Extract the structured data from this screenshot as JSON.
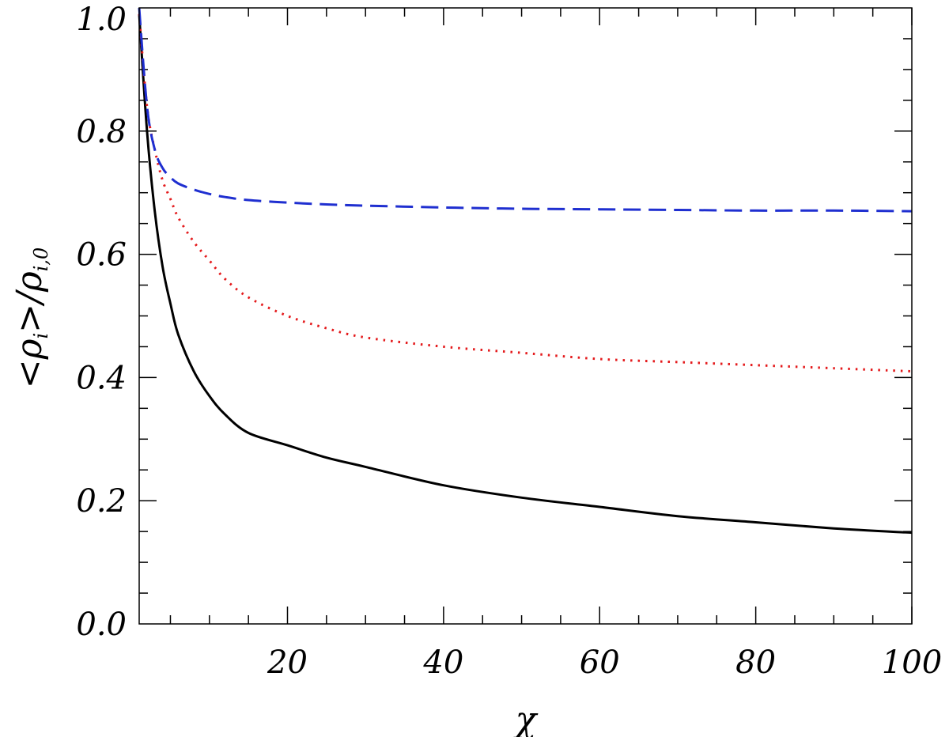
{
  "chart_data": {
    "type": "line",
    "title": "",
    "xlabel": "χ",
    "ylabel": {
      "lt": "<",
      "rho": "ρ",
      "sub_i": "i",
      "gt": ">",
      "slash": "/",
      "rho2": "ρ",
      "sub_i0": "i,0"
    },
    "xlim": [
      1,
      100
    ],
    "ylim": [
      0.0,
      1.0
    ],
    "x_major_ticks": [
      20,
      40,
      60,
      80,
      100
    ],
    "x_tick_labels": [
      "20",
      "40",
      "60",
      "80",
      "100"
    ],
    "x_minor_step": 5,
    "y_major_ticks": [
      0.0,
      0.2,
      0.4,
      0.6,
      0.8,
      1.0
    ],
    "y_tick_labels": [
      "0.0",
      "0.2",
      "0.4",
      "0.6",
      "0.8",
      "1.0"
    ],
    "y_minor_step": 0.05,
    "grid": false,
    "legend": "none",
    "series": [
      {
        "style": "solid",
        "color": "#000000",
        "x": [
          1,
          2,
          3,
          4,
          5,
          6,
          8,
          10,
          12,
          15,
          20,
          25,
          30,
          40,
          50,
          60,
          70,
          80,
          90,
          100
        ],
        "y": [
          0.99,
          0.8,
          0.67,
          0.58,
          0.52,
          0.47,
          0.41,
          0.37,
          0.34,
          0.31,
          0.29,
          0.27,
          0.255,
          0.225,
          0.205,
          0.19,
          0.175,
          0.165,
          0.155,
          0.148
        ]
      },
      {
        "style": "dotted",
        "color": "#e41a1c",
        "x": [
          1,
          2,
          3,
          4,
          5,
          6,
          8,
          10,
          12,
          15,
          20,
          25,
          30,
          40,
          50,
          60,
          70,
          80,
          90,
          100
        ],
        "y": [
          0.99,
          0.84,
          0.77,
          0.72,
          0.69,
          0.66,
          0.62,
          0.59,
          0.56,
          0.53,
          0.5,
          0.48,
          0.465,
          0.45,
          0.44,
          0.43,
          0.425,
          0.42,
          0.415,
          0.41
        ]
      },
      {
        "style": "dashed",
        "color": "#1f2fd0",
        "x": [
          1,
          2,
          3,
          4,
          5,
          6,
          8,
          10,
          12,
          15,
          20,
          25,
          30,
          40,
          50,
          60,
          70,
          80,
          90,
          100
        ],
        "y": [
          1.0,
          0.84,
          0.77,
          0.74,
          0.725,
          0.715,
          0.705,
          0.698,
          0.693,
          0.688,
          0.684,
          0.681,
          0.679,
          0.676,
          0.674,
          0.673,
          0.672,
          0.671,
          0.671,
          0.67
        ]
      }
    ]
  }
}
